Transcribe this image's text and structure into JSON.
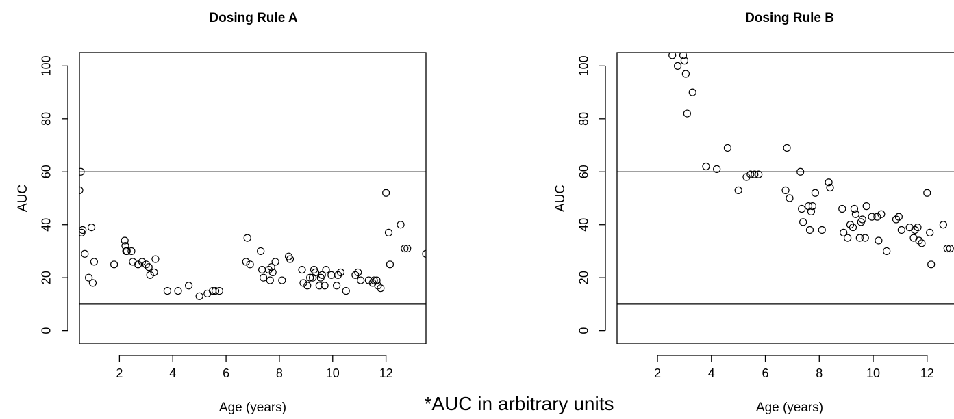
{
  "note": "*AUC in arbitrary units",
  "chart_data": [
    {
      "type": "scatter",
      "title": "Dosing Rule A",
      "xlabel": "Age (years)",
      "ylabel": "AUC",
      "xlim": [
        0.5,
        13.5
      ],
      "ylim": [
        -5,
        105
      ],
      "xticks": [
        2,
        4,
        6,
        8,
        10,
        12
      ],
      "yticks": [
        0,
        20,
        40,
        60,
        80,
        100
      ],
      "hlines": [
        10,
        60
      ],
      "grid": false,
      "points": [
        [
          0.5,
          53
        ],
        [
          0.55,
          60
        ],
        [
          0.58,
          37
        ],
        [
          0.62,
          38
        ],
        [
          0.7,
          29
        ],
        [
          0.85,
          20
        ],
        [
          0.95,
          39
        ],
        [
          1.0,
          18
        ],
        [
          1.05,
          26
        ],
        [
          1.8,
          25
        ],
        [
          2.2,
          34
        ],
        [
          2.22,
          32
        ],
        [
          2.25,
          30
        ],
        [
          2.28,
          30
        ],
        [
          2.45,
          30
        ],
        [
          2.5,
          26
        ],
        [
          2.7,
          25
        ],
        [
          2.85,
          26
        ],
        [
          3.0,
          25
        ],
        [
          3.1,
          24
        ],
        [
          3.15,
          21
        ],
        [
          3.3,
          22
        ],
        [
          3.35,
          27
        ],
        [
          3.8,
          15
        ],
        [
          4.2,
          15
        ],
        [
          4.6,
          17
        ],
        [
          5.0,
          13
        ],
        [
          5.3,
          14
        ],
        [
          5.5,
          15
        ],
        [
          5.6,
          15
        ],
        [
          5.75,
          15
        ],
        [
          6.75,
          26
        ],
        [
          6.8,
          35
        ],
        [
          6.9,
          25
        ],
        [
          7.3,
          30
        ],
        [
          7.35,
          23
        ],
        [
          7.4,
          20
        ],
        [
          7.6,
          23
        ],
        [
          7.65,
          19
        ],
        [
          7.7,
          24
        ],
        [
          7.75,
          22
        ],
        [
          7.85,
          26
        ],
        [
          8.1,
          19
        ],
        [
          8.35,
          28
        ],
        [
          8.4,
          27
        ],
        [
          8.85,
          23
        ],
        [
          8.9,
          18
        ],
        [
          9.05,
          17
        ],
        [
          9.15,
          20
        ],
        [
          9.25,
          20
        ],
        [
          9.3,
          23
        ],
        [
          9.35,
          22
        ],
        [
          9.5,
          17
        ],
        [
          9.55,
          20
        ],
        [
          9.6,
          21
        ],
        [
          9.7,
          17
        ],
        [
          9.75,
          23
        ],
        [
          9.95,
          21
        ],
        [
          10.15,
          17
        ],
        [
          10.2,
          21
        ],
        [
          10.3,
          22
        ],
        [
          10.5,
          15
        ],
        [
          10.85,
          21
        ],
        [
          10.95,
          22
        ],
        [
          11.05,
          19
        ],
        [
          11.35,
          19
        ],
        [
          11.5,
          18
        ],
        [
          11.55,
          19
        ],
        [
          11.65,
          19
        ],
        [
          11.7,
          17
        ],
        [
          11.8,
          16
        ],
        [
          12.0,
          52
        ],
        [
          12.1,
          37
        ],
        [
          12.15,
          25
        ],
        [
          12.55,
          40
        ],
        [
          12.7,
          31
        ],
        [
          12.8,
          31
        ],
        [
          13.5,
          29
        ]
      ]
    },
    {
      "type": "scatter",
      "title": "Dosing Rule B",
      "xlabel": "Age (years)",
      "ylabel": "AUC",
      "xlim": [
        0.5,
        13.2
      ],
      "ylim": [
        -5,
        105
      ],
      "xticks": [
        2,
        4,
        6,
        8,
        10,
        12
      ],
      "yticks": [
        0,
        20,
        40,
        60,
        80,
        100
      ],
      "hlines": [
        10,
        60
      ],
      "grid": false,
      "points": [
        [
          2.55,
          104
        ],
        [
          2.75,
          100
        ],
        [
          2.95,
          104
        ],
        [
          3.0,
          102
        ],
        [
          3.05,
          97
        ],
        [
          3.1,
          82
        ],
        [
          3.3,
          90
        ],
        [
          3.8,
          62
        ],
        [
          4.2,
          61
        ],
        [
          4.6,
          69
        ],
        [
          5.0,
          53
        ],
        [
          5.3,
          58
        ],
        [
          5.45,
          59
        ],
        [
          5.6,
          59
        ],
        [
          5.75,
          59
        ],
        [
          6.75,
          53
        ],
        [
          6.8,
          69
        ],
        [
          6.9,
          50
        ],
        [
          7.3,
          60
        ],
        [
          7.35,
          46
        ],
        [
          7.4,
          41
        ],
        [
          7.6,
          47
        ],
        [
          7.65,
          38
        ],
        [
          7.7,
          45
        ],
        [
          7.75,
          47
        ],
        [
          7.85,
          52
        ],
        [
          8.1,
          38
        ],
        [
          8.35,
          56
        ],
        [
          8.4,
          54
        ],
        [
          8.85,
          46
        ],
        [
          8.9,
          37
        ],
        [
          9.05,
          35
        ],
        [
          9.15,
          40
        ],
        [
          9.25,
          39
        ],
        [
          9.3,
          46
        ],
        [
          9.35,
          44
        ],
        [
          9.5,
          35
        ],
        [
          9.55,
          41
        ],
        [
          9.6,
          42
        ],
        [
          9.7,
          35
        ],
        [
          9.75,
          47
        ],
        [
          9.95,
          43
        ],
        [
          10.15,
          43
        ],
        [
          10.2,
          34
        ],
        [
          10.3,
          44
        ],
        [
          10.5,
          30
        ],
        [
          10.85,
          42
        ],
        [
          10.95,
          43
        ],
        [
          11.05,
          38
        ],
        [
          11.35,
          39
        ],
        [
          11.5,
          35
        ],
        [
          11.55,
          38
        ],
        [
          11.65,
          39
        ],
        [
          11.7,
          34
        ],
        [
          11.8,
          33
        ],
        [
          12.0,
          52
        ],
        [
          12.1,
          37
        ],
        [
          12.15,
          25
        ],
        [
          12.6,
          40
        ],
        [
          12.75,
          31
        ],
        [
          12.85,
          31
        ]
      ]
    }
  ]
}
